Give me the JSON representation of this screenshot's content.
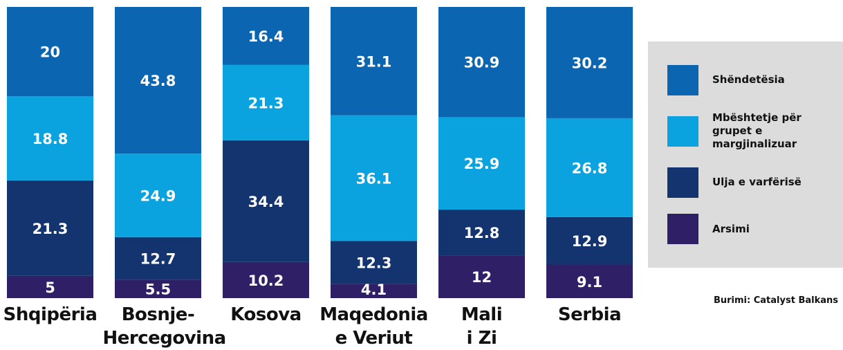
{
  "chart_data": {
    "type": "bar",
    "stacked": true,
    "normalize": true,
    "categories": [
      "Shqipëria",
      "Bosnje-\nHercegovina",
      "Kosova",
      "Maqedonia\ne Veriut",
      "Mali\ni Zi",
      "Serbia"
    ],
    "series": [
      {
        "name": "Shëndetësia",
        "color": "#0b65b0",
        "values": [
          20,
          43.8,
          16.4,
          31.1,
          30.9,
          30.2
        ]
      },
      {
        "name": "Mbështetje për grupet e margjinalizuar",
        "color": "#0ba3df",
        "values": [
          18.8,
          24.9,
          21.3,
          36.1,
          25.9,
          26.8
        ]
      },
      {
        "name": "Ulja e varfërisë",
        "color": "#13346e",
        "values": [
          21.3,
          12.7,
          34.4,
          12.3,
          12.8,
          12.9
        ]
      },
      {
        "name": "Arsimi",
        "color": "#2e1f67",
        "values": [
          5,
          5.5,
          10.2,
          4.1,
          12,
          9.1
        ]
      }
    ],
    "source": "Burimi: Catalyst Balkans"
  }
}
